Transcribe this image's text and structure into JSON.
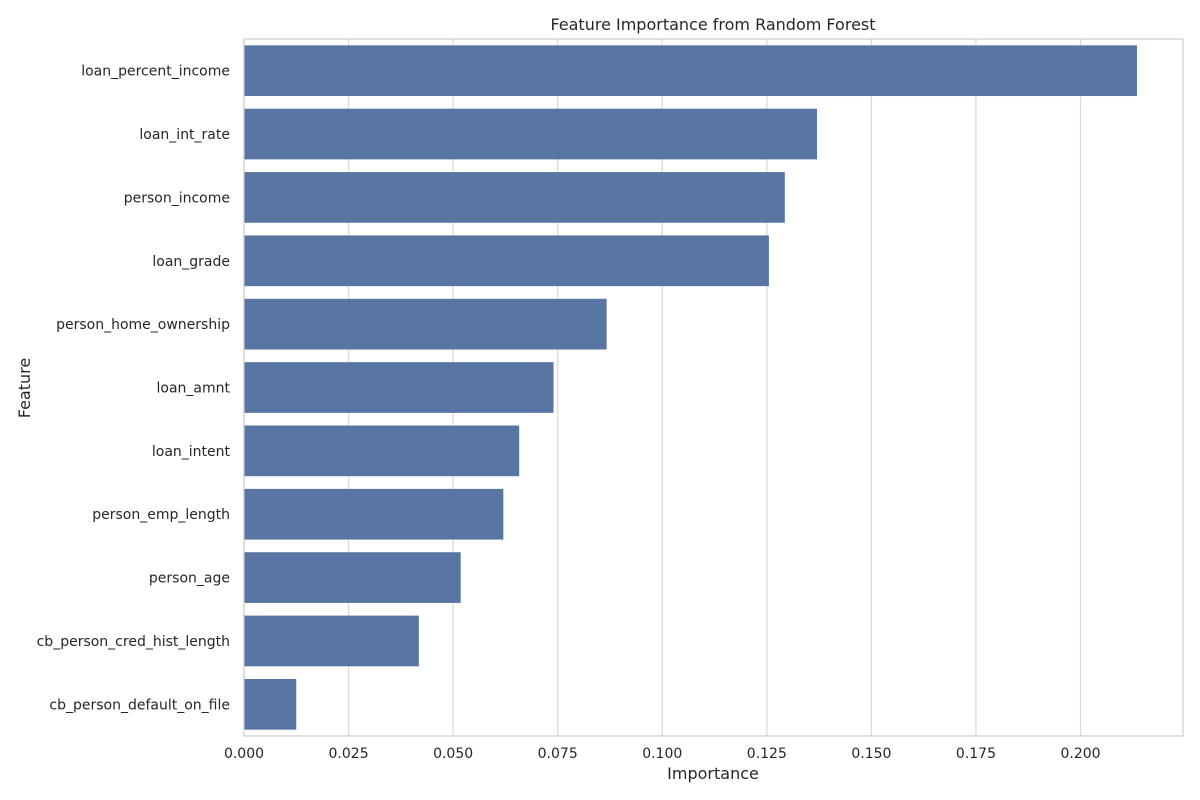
{
  "chart_data": {
    "type": "bar",
    "orientation": "horizontal",
    "title": "Feature Importance from Random Forest",
    "xlabel": "Importance",
    "ylabel": "Feature",
    "categories": [
      "loan_percent_income",
      "loan_int_rate",
      "person_income",
      "loan_grade",
      "person_home_ownership",
      "loan_amnt",
      "loan_intent",
      "person_emp_length",
      "person_age",
      "cb_person_cred_hist_length",
      "cb_person_default_on_file"
    ],
    "values": [
      0.2135,
      0.137,
      0.1293,
      0.1255,
      0.0867,
      0.074,
      0.0658,
      0.062,
      0.0518,
      0.0418,
      0.0125
    ],
    "xlim": [
      0,
      0.2245
    ],
    "xticks": [
      0.0,
      0.025,
      0.05,
      0.075,
      0.1,
      0.125,
      0.15,
      0.175,
      0.2
    ],
    "xtick_labels": [
      "0.000",
      "0.025",
      "0.050",
      "0.075",
      "0.100",
      "0.125",
      "0.150",
      "0.175",
      "0.200"
    ],
    "grid": "vertical",
    "bar_color": "#5875a4",
    "grid_color": "#d9d9d9",
    "spine_color": "#cccccc",
    "text_color": "#262626"
  }
}
